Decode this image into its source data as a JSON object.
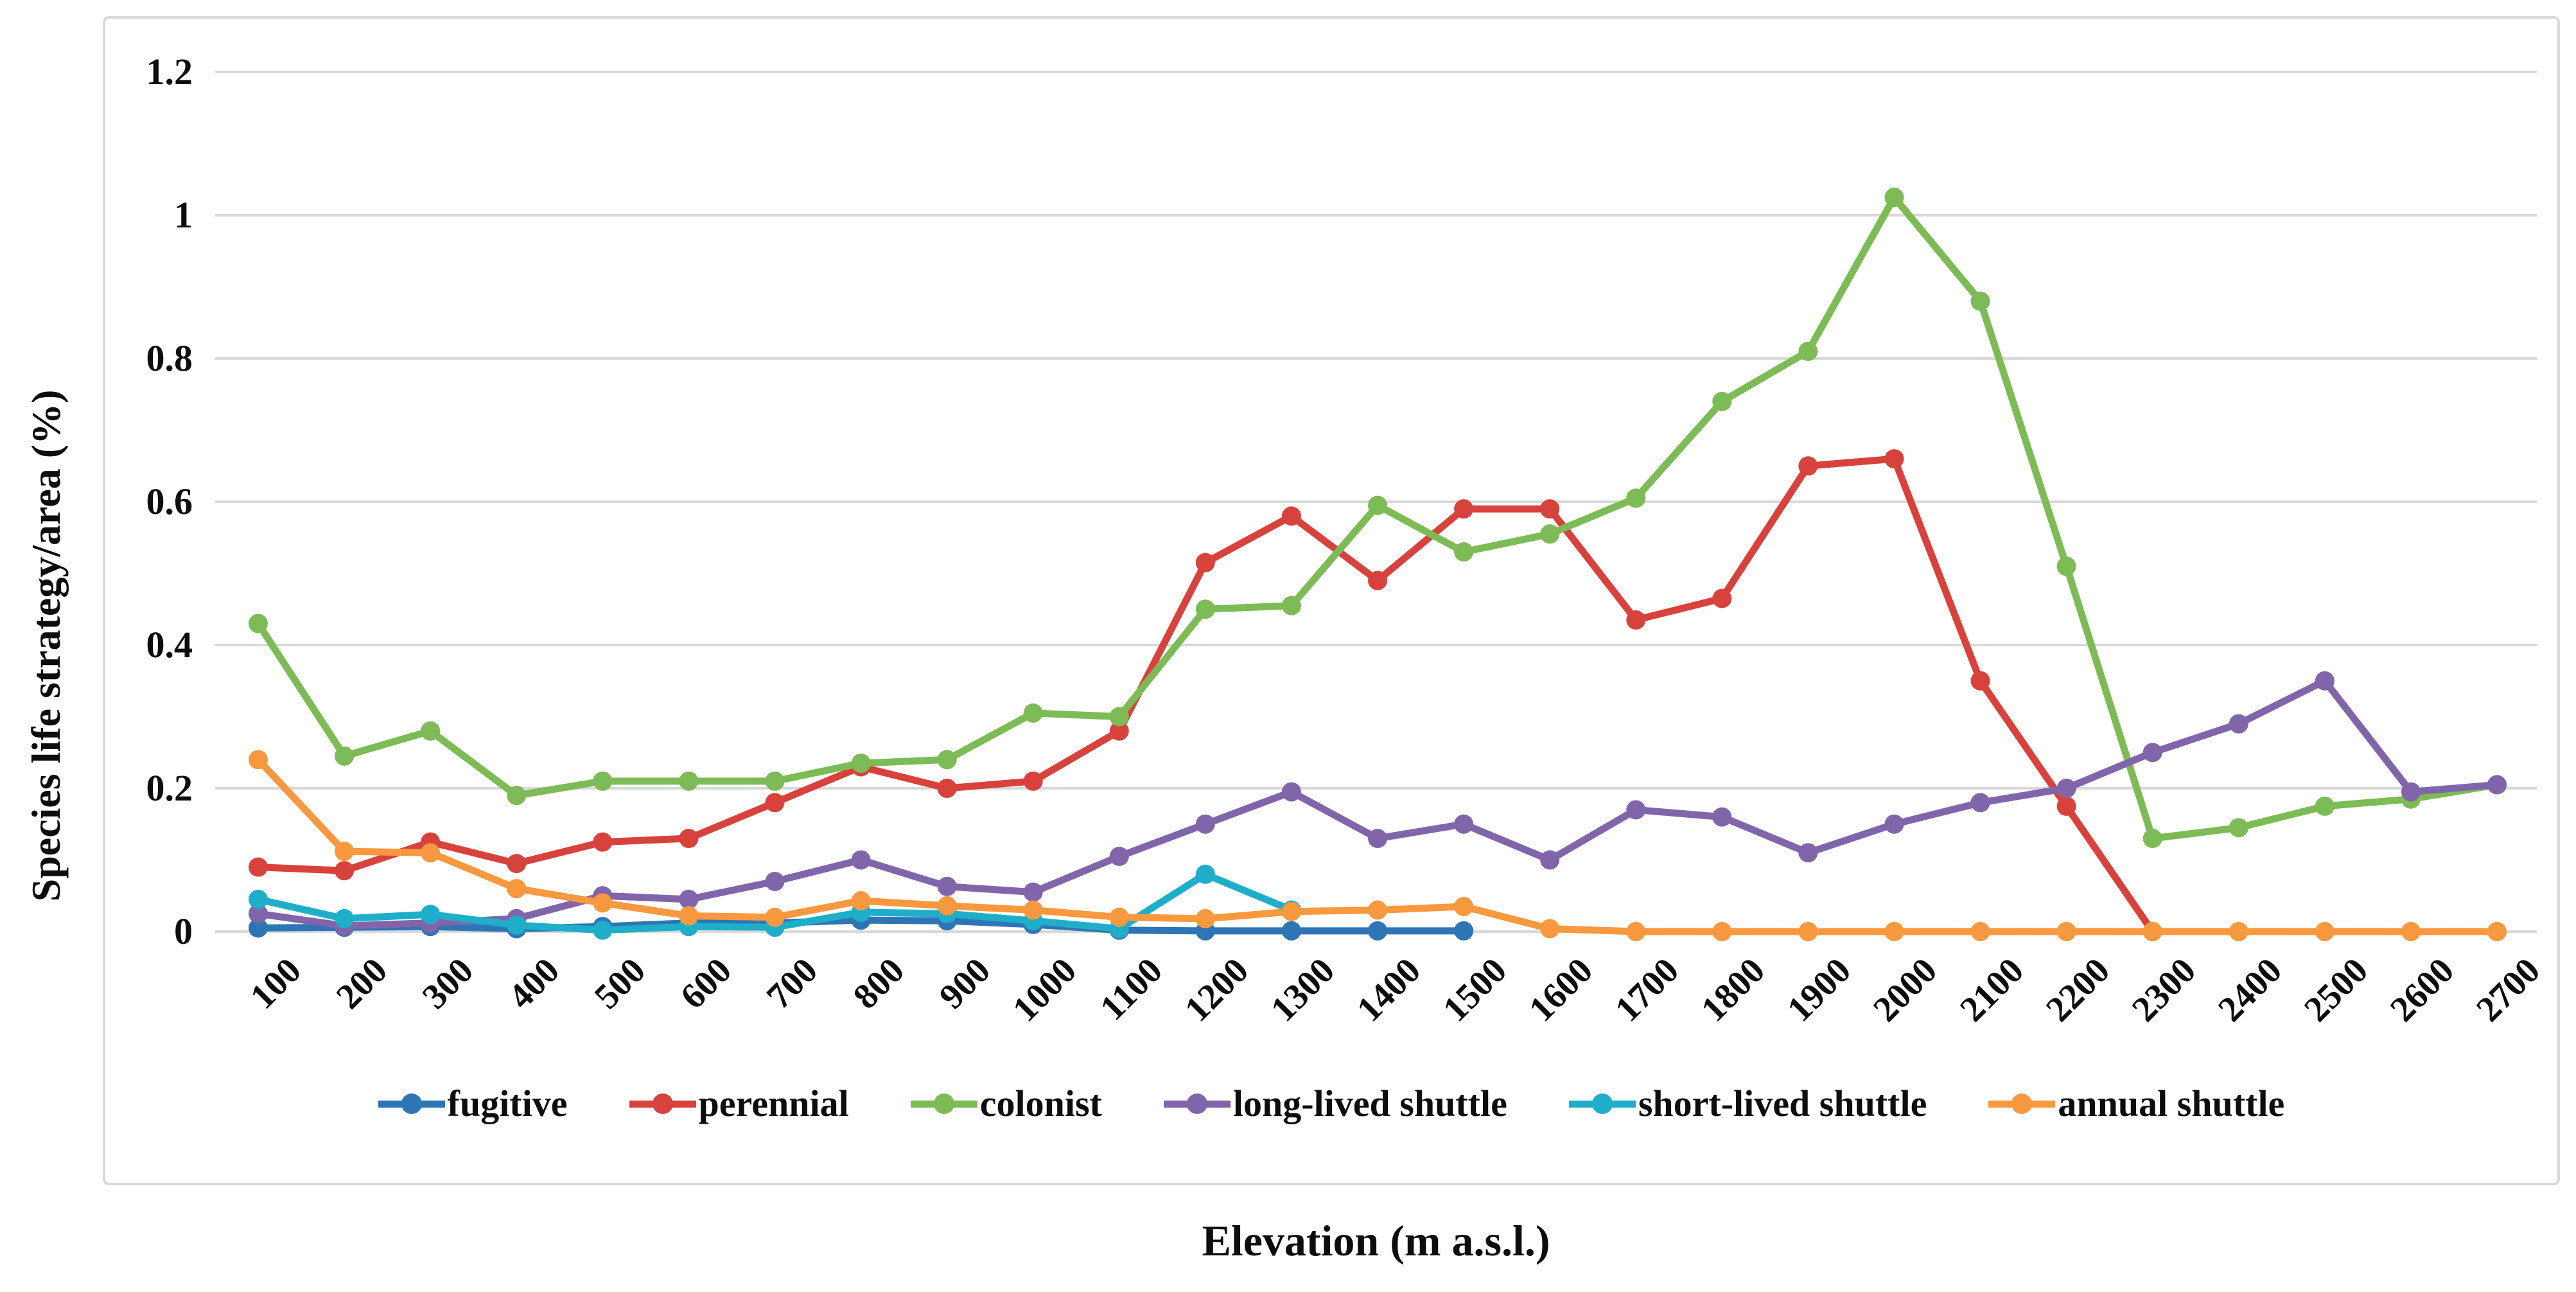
{
  "chart_data": {
    "type": "line",
    "title": "",
    "xlabel": "Elevation (m a.s.l.)",
    "ylabel": "Species life strategy/area (%)",
    "x": [
      100,
      200,
      300,
      400,
      500,
      600,
      700,
      800,
      900,
      1000,
      1100,
      1200,
      1300,
      1400,
      1500,
      1600,
      1700,
      1800,
      1900,
      2000,
      2100,
      2200,
      2300,
      2400,
      2500,
      2600,
      2700
    ],
    "ylim": [
      0,
      1.2
    ],
    "yticks": [
      0,
      0.2,
      0.4,
      0.6,
      0.8,
      1,
      1.2
    ],
    "grid": true,
    "gridline_color": "#d9d9d9",
    "legend_position": "bottom-inside",
    "marker": "circle",
    "series": [
      {
        "name": "fugitive",
        "color": "#2E75B6",
        "values": [
          0.005,
          0.006,
          0.007,
          0.004,
          0.007,
          0.012,
          0.012,
          0.016,
          0.015,
          0.01,
          0.002,
          0.001,
          0.001,
          0.001,
          0.001,
          null,
          null,
          null,
          null,
          null,
          null,
          null,
          null,
          null,
          null,
          null,
          null
        ]
      },
      {
        "name": "perennial",
        "color": "#D8423C",
        "values": [
          0.09,
          0.085,
          0.125,
          0.095,
          0.125,
          0.13,
          0.18,
          0.23,
          0.2,
          0.21,
          0.28,
          0.515,
          0.58,
          0.49,
          0.59,
          0.59,
          0.435,
          0.465,
          0.65,
          0.66,
          0.35,
          0.175,
          0,
          null,
          null,
          null,
          null
        ]
      },
      {
        "name": "colonist",
        "color": "#7CBB55",
        "values": [
          0.43,
          0.245,
          0.28,
          0.19,
          0.21,
          0.21,
          0.21,
          0.235,
          0.24,
          0.305,
          0.3,
          0.45,
          0.455,
          0.595,
          0.53,
          0.555,
          0.605,
          0.74,
          0.81,
          1.025,
          0.88,
          0.51,
          0.13,
          0.145,
          0.175,
          0.185,
          0.205
        ]
      },
      {
        "name": "long-lived shuttle",
        "color": "#8165AB",
        "values": [
          0.025,
          0.008,
          0.012,
          0.018,
          0.05,
          0.045,
          0.07,
          0.1,
          0.063,
          0.055,
          0.105,
          0.15,
          0.195,
          0.13,
          0.15,
          0.1,
          0.17,
          0.16,
          0.11,
          0.15,
          0.18,
          0.2,
          0.25,
          0.29,
          0.35,
          0.195,
          0.205
        ]
      },
      {
        "name": "short-lived shuttle",
        "color": "#1FAEC9",
        "values": [
          0.045,
          0.018,
          0.024,
          0.009,
          0.002,
          0.007,
          0.006,
          0.027,
          0.025,
          0.015,
          0.004,
          0.08,
          0.03,
          null,
          null,
          null,
          null,
          null,
          null,
          null,
          null,
          null,
          null,
          null,
          null,
          null,
          null
        ]
      },
      {
        "name": "annual shuttle",
        "color": "#F9993F",
        "values": [
          0.24,
          0.112,
          0.11,
          0.06,
          0.04,
          0.022,
          0.02,
          0.043,
          0.036,
          0.03,
          0.02,
          0.018,
          0.028,
          0.03,
          0.035,
          0.004,
          0,
          0,
          0,
          0,
          0,
          0,
          0,
          0,
          0,
          0,
          0
        ]
      }
    ]
  }
}
